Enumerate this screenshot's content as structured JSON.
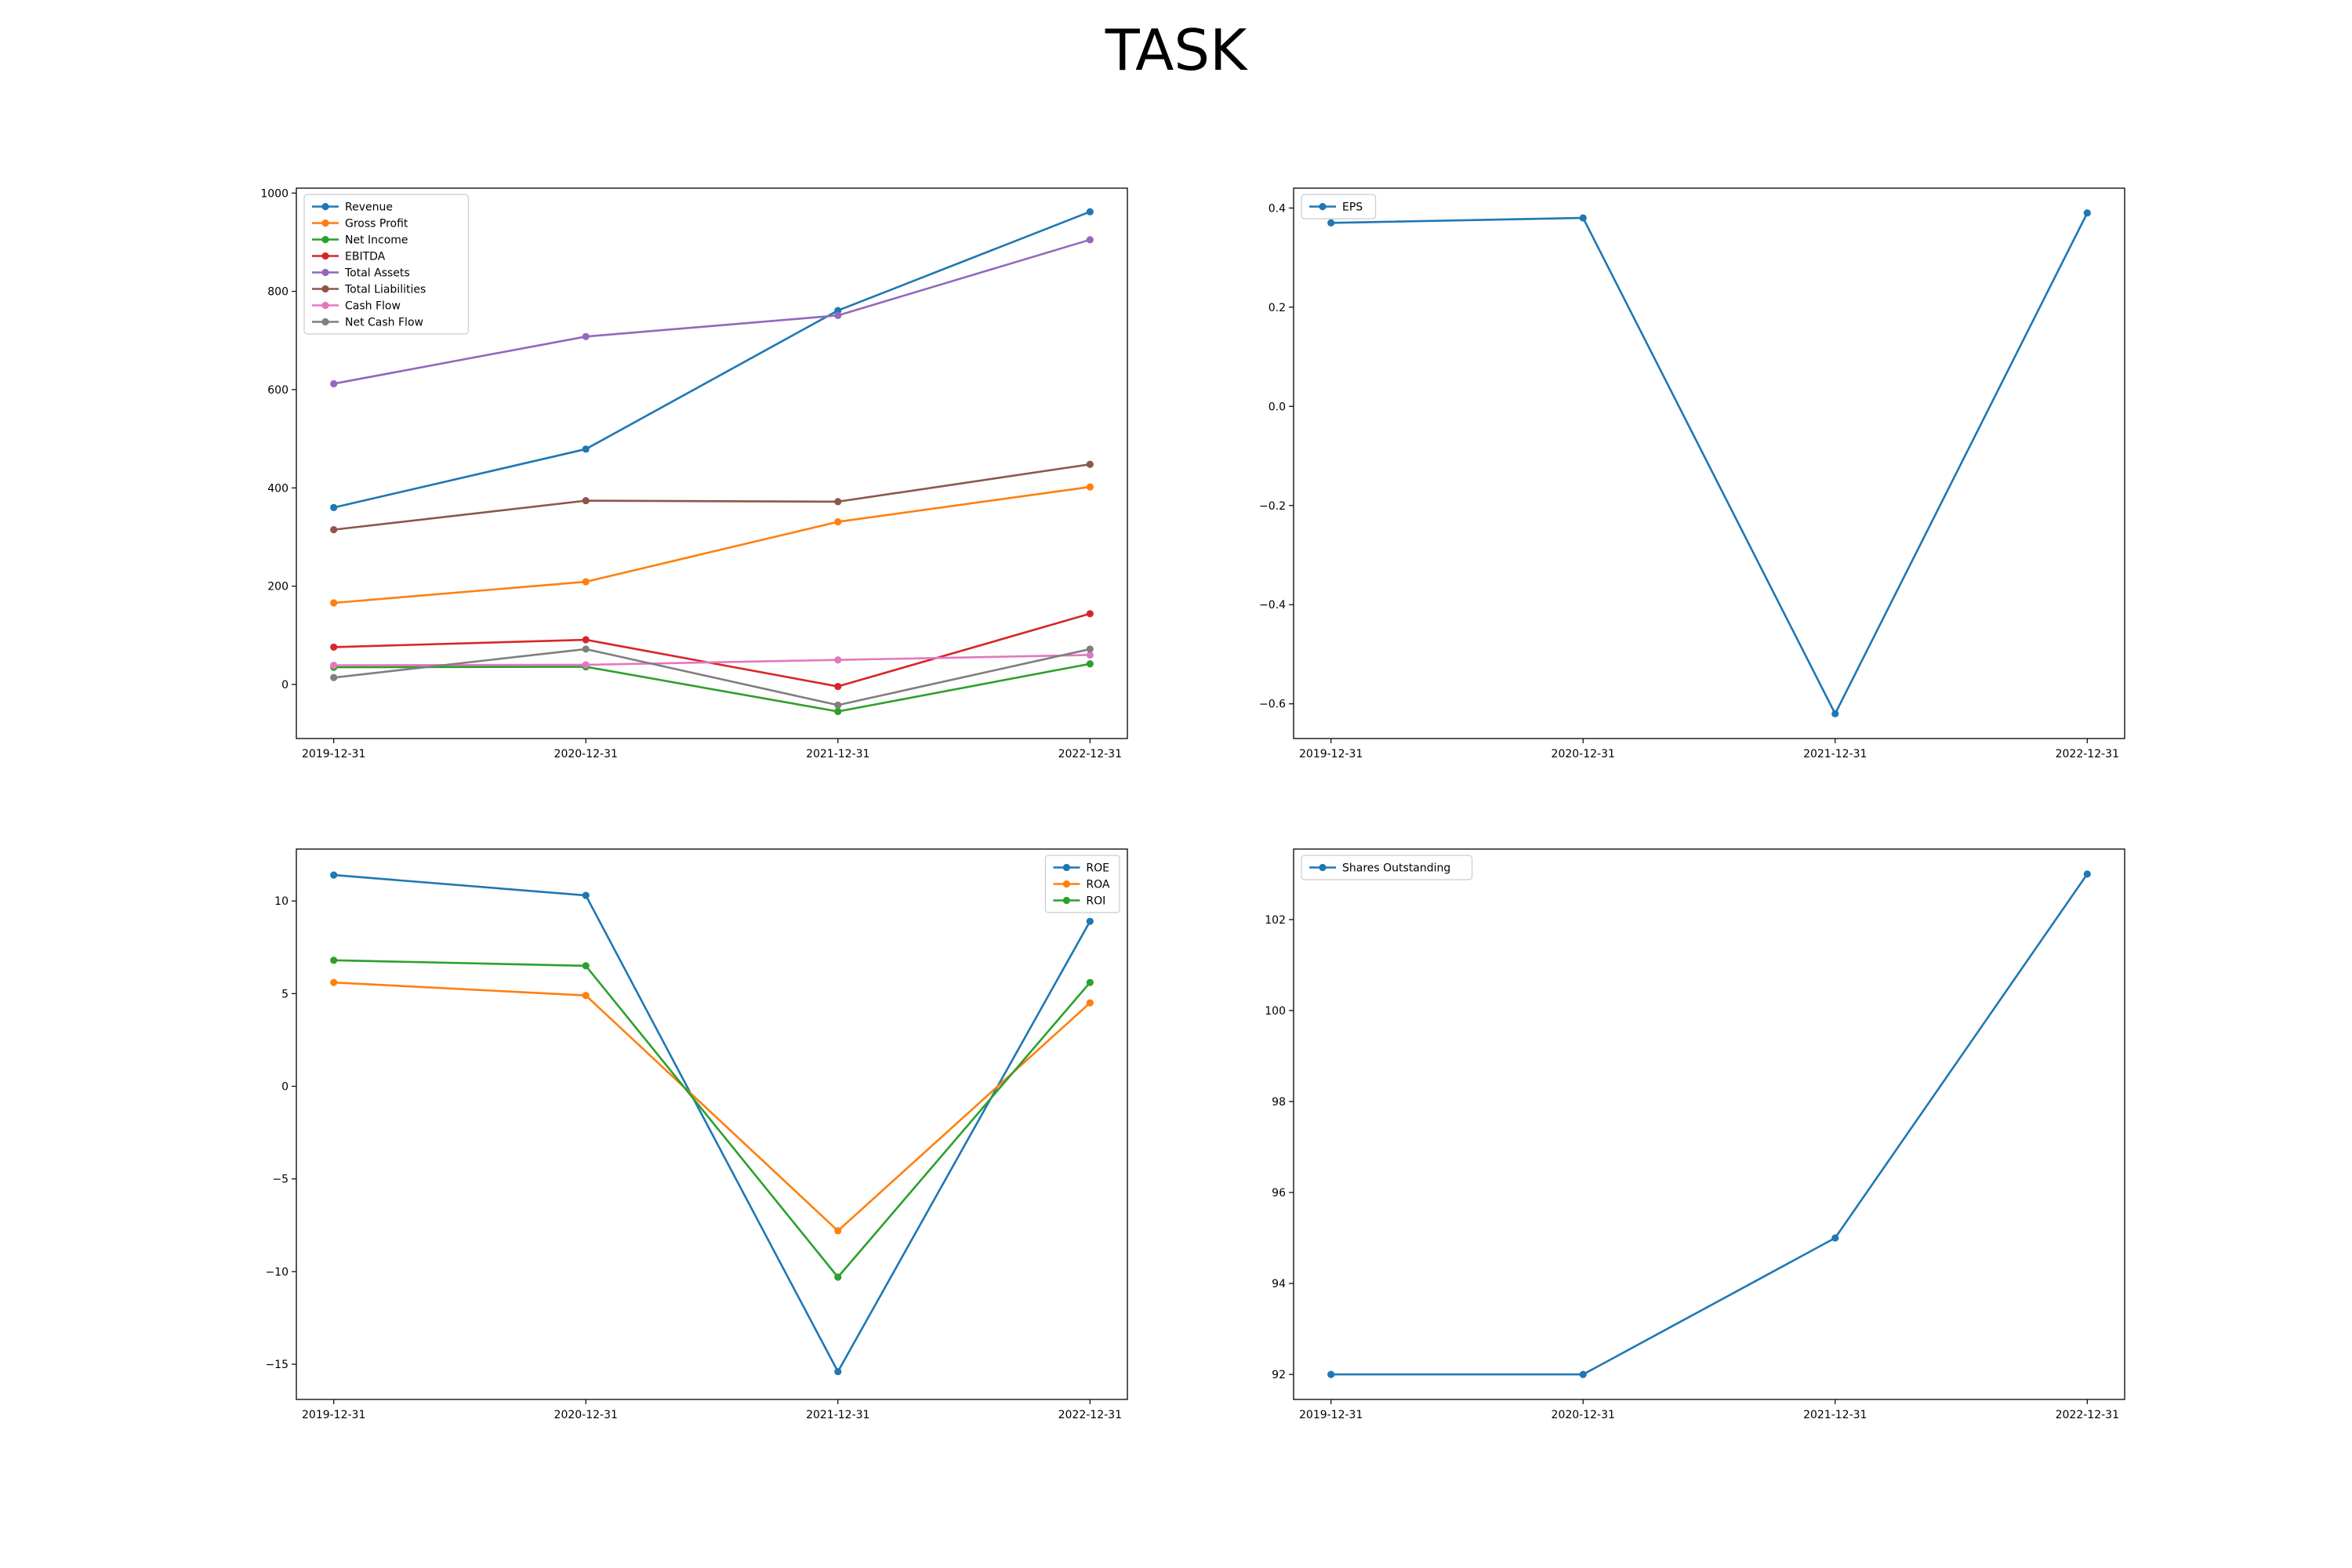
{
  "figure": {
    "title": "TASK"
  },
  "chart_data": [
    {
      "type": "line",
      "categories": [
        "2019-12-31",
        "2020-12-31",
        "2021-12-31",
        "2022-12-31"
      ],
      "ylim": [
        -110,
        1010
      ],
      "yticks": [
        0,
        200,
        400,
        600,
        800,
        1000
      ],
      "ytick_labels": [
        "0",
        "200",
        "400",
        "600",
        "800",
        "1000"
      ],
      "grid": false,
      "legend": "upper left",
      "series": [
        {
          "name": "Revenue",
          "color": "#1f77b4",
          "values": [
            360,
            479,
            761,
            962
          ]
        },
        {
          "name": "Gross Profit",
          "color": "#ff7f0e",
          "values": [
            166,
            209,
            331,
            402
          ]
        },
        {
          "name": "Net Income",
          "color": "#2ca02c",
          "values": [
            35,
            36,
            -55,
            42
          ]
        },
        {
          "name": "EBITDA",
          "color": "#d62728",
          "values": [
            76,
            91,
            -4,
            144
          ]
        },
        {
          "name": "Total Assets",
          "color": "#9467bd",
          "values": [
            612,
            708,
            751,
            905
          ]
        },
        {
          "name": "Total Liabilities",
          "color": "#8c564b",
          "values": [
            315,
            374,
            372,
            448
          ]
        },
        {
          "name": "Cash Flow",
          "color": "#e377c2",
          "values": [
            39,
            40,
            50,
            60
          ]
        },
        {
          "name": "Net Cash Flow",
          "color": "#7f7f7f",
          "values": [
            14,
            72,
            -42,
            72
          ]
        }
      ]
    },
    {
      "type": "line",
      "categories": [
        "2019-12-31",
        "2020-12-31",
        "2021-12-31",
        "2022-12-31"
      ],
      "ylim": [
        -0.67,
        0.44
      ],
      "yticks": [
        -0.6,
        -0.4,
        -0.2,
        0.0,
        0.2,
        0.4
      ],
      "ytick_labels": [
        "−0.6",
        "−0.4",
        "−0.2",
        "0.0",
        "0.2",
        "0.4"
      ],
      "grid": false,
      "legend": "upper left",
      "series": [
        {
          "name": "EPS",
          "color": "#1f77b4",
          "values": [
            0.37,
            0.38,
            -0.62,
            0.39
          ]
        }
      ]
    },
    {
      "type": "line",
      "categories": [
        "2019-12-31",
        "2020-12-31",
        "2021-12-31",
        "2022-12-31"
      ],
      "ylim": [
        -16.9,
        12.8
      ],
      "yticks": [
        -15,
        -10,
        -5,
        0,
        5,
        10
      ],
      "ytick_labels": [
        "−15",
        "−10",
        "−5",
        "0",
        "5",
        "10"
      ],
      "grid": false,
      "legend": "upper right",
      "series": [
        {
          "name": "ROE",
          "color": "#1f77b4",
          "values": [
            11.4,
            10.3,
            -15.4,
            8.9
          ]
        },
        {
          "name": "ROA",
          "color": "#ff7f0e",
          "values": [
            5.6,
            4.9,
            -7.8,
            4.5
          ]
        },
        {
          "name": "ROI",
          "color": "#2ca02c",
          "values": [
            6.8,
            6.5,
            -10.3,
            5.6
          ]
        }
      ]
    },
    {
      "type": "line",
      "categories": [
        "2019-12-31",
        "2020-12-31",
        "2021-12-31",
        "2022-12-31"
      ],
      "ylim": [
        91.45,
        103.55
      ],
      "yticks": [
        92,
        94,
        96,
        98,
        100,
        102
      ],
      "ytick_labels": [
        "92",
        "94",
        "96",
        "98",
        "100",
        "102"
      ],
      "grid": false,
      "legend": "upper left",
      "series": [
        {
          "name": "Shares Outstanding",
          "color": "#1f77b4",
          "values": [
            92,
            92,
            95,
            103
          ]
        }
      ]
    }
  ]
}
